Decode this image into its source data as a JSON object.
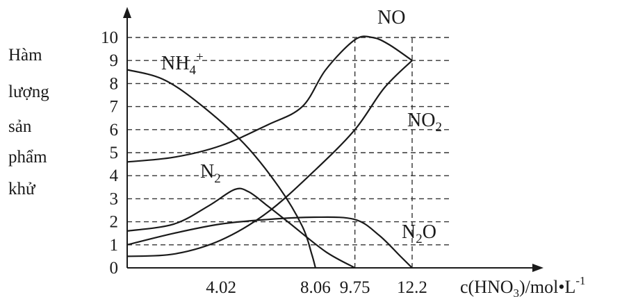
{
  "chart_data": {
    "type": "line",
    "title": "",
    "ylabel_lines": [
      "Hàm",
      "lượng",
      "sản",
      "phẩm",
      "khử"
    ],
    "xlabel": {
      "prefix": "c(HNO",
      "sub": "3",
      "suffix": ")/mol•L",
      "sup": "-1"
    },
    "xticks": [
      "4.02",
      "8.06",
      "9.75",
      "12.2"
    ],
    "yticks": [
      "0",
      "1",
      "2",
      "3",
      "4",
      "5",
      "6",
      "7",
      "8",
      "9",
      "10"
    ],
    "xlim": [
      0,
      12.2
    ],
    "ylim": [
      0,
      10
    ],
    "grid": true,
    "series": [
      {
        "name": "NO",
        "label_parts": [
          {
            "t": "NO"
          }
        ],
        "x": [
          0,
          2,
          4,
          6,
          7.5,
          8.5,
          9.75,
          10.5,
          11.2,
          12.2
        ],
        "y": [
          4.6,
          4.8,
          5.3,
          6.2,
          7.0,
          8.6,
          9.9,
          10.0,
          9.7,
          9.0
        ]
      },
      {
        "name": "NO2",
        "label_parts": [
          {
            "t": "NO"
          },
          {
            "t": "2",
            "sub": true
          }
        ],
        "x": [
          0,
          2,
          4,
          6,
          8,
          9.75,
          11,
          12.2
        ],
        "y": [
          0.5,
          0.6,
          1.2,
          2.4,
          4.2,
          6.0,
          7.8,
          9.0
        ],
        "end_x": 12.2
      },
      {
        "name": "NH4+",
        "label_parts": [
          {
            "t": "NH"
          },
          {
            "t": "4",
            "sub": true
          },
          {
            "t": "+",
            "sup": true
          }
        ],
        "x": [
          0,
          1.5,
          3,
          5,
          6.5,
          7.5,
          7.9,
          8.06
        ],
        "y": [
          8.6,
          8.2,
          7.2,
          5.4,
          3.5,
          1.8,
          0.6,
          0
        ]
      },
      {
        "name": "N2",
        "label_parts": [
          {
            "t": "N"
          },
          {
            "t": "2",
            "sub": true
          }
        ],
        "x": [
          0,
          2,
          3.5,
          4.6,
          5.2,
          6.0,
          7.0,
          8.5,
          9.75
        ],
        "y": [
          1.6,
          1.9,
          2.7,
          3.4,
          3.3,
          2.7,
          1.9,
          0.7,
          0
        ]
      },
      {
        "name": "N2O",
        "label_parts": [
          {
            "t": "N"
          },
          {
            "t": "2",
            "sub": true
          },
          {
            "t": "O"
          }
        ],
        "x": [
          0,
          2,
          4,
          6,
          8,
          9.75,
          10.8,
          11.7,
          12.2
        ],
        "y": [
          1.0,
          1.5,
          1.9,
          2.1,
          2.2,
          2.1,
          1.4,
          0.5,
          0
        ]
      }
    ]
  }
}
